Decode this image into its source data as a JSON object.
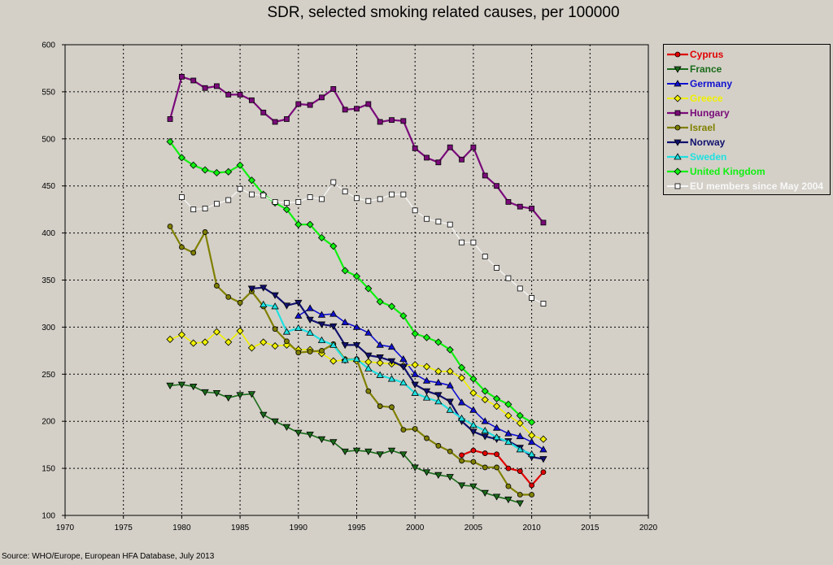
{
  "chart_data": {
    "type": "line",
    "title": "SDR, selected smoking related causes, per 100000",
    "xlabel": "",
    "ylabel": "",
    "xlim": [
      1970,
      2020
    ],
    "ylim": [
      100,
      600
    ],
    "x_ticks": [
      "1970",
      "1975",
      "1980",
      "1985",
      "1990",
      "1995",
      "2000",
      "2005",
      "2010",
      "2015",
      "2020"
    ],
    "y_ticks": [
      "100",
      "150",
      "200",
      "250",
      "300",
      "350",
      "400",
      "450",
      "500",
      "550",
      "600"
    ],
    "grid": true,
    "legend_position": "right",
    "series": [
      {
        "name": "Cyprus",
        "color": "#e00000",
        "line_width": 2.2,
        "marker": "circle",
        "marker_fill": "#e00000",
        "x": [
          2004,
          2005,
          2006,
          2007,
          2008,
          2009,
          2010,
          2011
        ],
        "y": [
          164,
          169,
          166,
          165,
          150,
          147,
          132,
          146
        ]
      },
      {
        "name": "France",
        "color": "#1a6b1a",
        "line_width": 1.6,
        "marker": "triangle-down",
        "marker_fill": "#1a6b1a",
        "x": [
          1979,
          1980,
          1981,
          1982,
          1983,
          1984,
          1985,
          1986,
          1987,
          1988,
          1989,
          1990,
          1991,
          1992,
          1993,
          1994,
          1995,
          1996,
          1997,
          1998,
          1999,
          2000,
          2001,
          2002,
          2003,
          2004,
          2005,
          2006,
          2007,
          2008,
          2009
        ],
        "y": [
          238,
          239,
          237,
          231,
          230,
          225,
          228,
          229,
          207,
          200,
          194,
          188,
          186,
          181,
          178,
          168,
          169,
          168,
          165,
          169,
          165,
          151,
          146,
          143,
          141,
          132,
          131,
          124,
          120,
          117,
          113
        ]
      },
      {
        "name": "Germany",
        "color": "#1010d0",
        "line_width": 1.6,
        "marker": "triangle-up",
        "marker_fill": "#1010d0",
        "x": [
          1990,
          1991,
          1992,
          1993,
          1994,
          1995,
          1996,
          1997,
          1998,
          1999,
          2000,
          2001,
          2002,
          2003,
          2004,
          2005,
          2006,
          2007,
          2008,
          2009,
          2010,
          2011
        ],
        "y": [
          312,
          320,
          313,
          314,
          305,
          300,
          294,
          281,
          279,
          266,
          250,
          243,
          241,
          238,
          220,
          212,
          200,
          193,
          187,
          184,
          178,
          170
        ]
      },
      {
        "name": "Greece",
        "color": "#f0f000",
        "line_width": 1.6,
        "marker": "diamond",
        "marker_fill": "#f0f000",
        "x": [
          1979,
          1980,
          1981,
          1982,
          1983,
          1984,
          1985,
          1986,
          1987,
          1988,
          1989,
          1990,
          1991,
          1992,
          1993,
          1994,
          1995,
          1996,
          1997,
          1998,
          1999,
          2000,
          2001,
          2002,
          2003,
          2004,
          2005,
          2006,
          2007,
          2008,
          2009,
          2010,
          2011
        ],
        "y": [
          287,
          292,
          283,
          284,
          295,
          284,
          296,
          278,
          284,
          280,
          281,
          276,
          276,
          272,
          264,
          265,
          264,
          263,
          262,
          261,
          259,
          260,
          258,
          253,
          253,
          246,
          230,
          223,
          216,
          206,
          198,
          185,
          181
        ]
      },
      {
        "name": "Hungary",
        "color": "#7a0a7a",
        "line_width": 2.2,
        "marker": "square",
        "marker_fill": "#7a0a7a",
        "x": [
          1979,
          1980,
          1981,
          1982,
          1983,
          1984,
          1985,
          1986,
          1987,
          1988,
          1989,
          1990,
          1991,
          1992,
          1993,
          1994,
          1995,
          1996,
          1997,
          1998,
          1999,
          2000,
          2001,
          2002,
          2003,
          2004,
          2005,
          2006,
          2007,
          2008,
          2009,
          2010,
          2011
        ],
        "y": [
          521,
          566,
          562,
          554,
          556,
          547,
          547,
          541,
          528,
          518,
          521,
          537,
          536,
          544,
          553,
          531,
          532,
          537,
          518,
          520,
          519,
          490,
          480,
          475,
          491,
          478,
          491,
          461,
          450,
          433,
          428,
          426,
          411
        ]
      },
      {
        "name": "Israel",
        "color": "#808000",
        "line_width": 2.2,
        "marker": "circle",
        "marker_fill": "#808000",
        "x": [
          1979,
          1980,
          1981,
          1982,
          1983,
          1984,
          1985,
          1986,
          1987,
          1988,
          1989,
          1990,
          1991,
          1992,
          1993,
          1994,
          1995,
          1996,
          1997,
          1998,
          1999,
          2000,
          2001,
          2002,
          2003,
          2004,
          2005,
          2006,
          2007,
          2008,
          2009,
          2010
        ],
        "y": [
          407,
          385,
          379,
          401,
          344,
          332,
          326,
          338,
          322,
          298,
          285,
          273,
          274,
          275,
          282,
          266,
          266,
          232,
          216,
          215,
          191,
          192,
          182,
          174,
          168,
          158,
          157,
          151,
          151,
          131,
          122,
          122
        ]
      },
      {
        "name": "Norway",
        "color": "#10106e",
        "line_width": 2.2,
        "marker": "triangle-down",
        "marker_fill": "#10106e",
        "x": [
          1986,
          1987,
          1988,
          1989,
          1990,
          1991,
          1992,
          1993,
          1994,
          1995,
          1996,
          1997,
          1998,
          1999,
          2000,
          2001,
          2002,
          2003,
          2004,
          2005,
          2006,
          2007,
          2008,
          2009,
          2010,
          2011
        ],
        "y": [
          341,
          342,
          334,
          323,
          326,
          308,
          303,
          301,
          281,
          281,
          270,
          268,
          264,
          258,
          239,
          232,
          228,
          221,
          200,
          189,
          184,
          181,
          179,
          172,
          162,
          160
        ]
      },
      {
        "name": "Sweden",
        "color": "#20e0e0",
        "line_width": 2.2,
        "marker": "triangle-up",
        "marker_fill": "#20e0e0",
        "x": [
          1987,
          1988,
          1989,
          1990,
          1991,
          1992,
          1993,
          1994,
          1995,
          1996,
          1997,
          1998,
          1999,
          2000,
          2001,
          2002,
          2003,
          2004,
          2005,
          2006,
          2007,
          2008,
          2009,
          2010
        ],
        "y": [
          324,
          322,
          295,
          299,
          294,
          286,
          281,
          265,
          266,
          256,
          249,
          245,
          241,
          230,
          225,
          221,
          212,
          203,
          196,
          190,
          183,
          178,
          170,
          165
        ]
      },
      {
        "name": "United Kingdom",
        "color": "#10f010",
        "line_width": 2.2,
        "marker": "diamond",
        "marker_fill": "#10f010",
        "x": [
          1979,
          1980,
          1981,
          1982,
          1983,
          1984,
          1985,
          1986,
          1987,
          1988,
          1989,
          1990,
          1991,
          1992,
          1993,
          1994,
          1995,
          1996,
          1997,
          1998,
          1999,
          2000,
          2001,
          2002,
          2003,
          2004,
          2005,
          2006,
          2007,
          2008,
          2009,
          2010
        ],
        "y": [
          497,
          480,
          472,
          467,
          464,
          465,
          472,
          456,
          441,
          432,
          425,
          409,
          409,
          395,
          386,
          360,
          354,
          341,
          327,
          322,
          312,
          293,
          289,
          284,
          276,
          257,
          245,
          232,
          224,
          218,
          206,
          199
        ]
      },
      {
        "name": "EU members since May 2004",
        "color": "#f8f8f8",
        "line_width": 1.2,
        "marker": "square",
        "marker_fill": "#ffffff",
        "x": [
          1980,
          1981,
          1982,
          1983,
          1984,
          1985,
          1986,
          1987,
          1988,
          1989,
          1990,
          1991,
          1992,
          1993,
          1994,
          1995,
          1996,
          1997,
          1998,
          1999,
          2000,
          2001,
          2002,
          2003,
          2004,
          2005,
          2006,
          2007,
          2008,
          2009,
          2010,
          2011
        ],
        "y": [
          438,
          425,
          426,
          431,
          435,
          447,
          441,
          440,
          433,
          432,
          433,
          438,
          436,
          454,
          444,
          437,
          434,
          436,
          441,
          441,
          424,
          415,
          412,
          409,
          390,
          390,
          375,
          363,
          352,
          341,
          331,
          325
        ]
      }
    ]
  },
  "source_note": "Source: WHO/Europe, European HFA Database, July 2013"
}
